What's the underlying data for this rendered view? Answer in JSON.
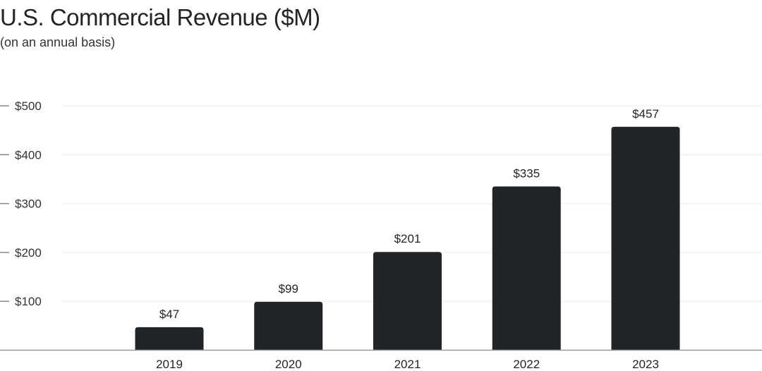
{
  "chart_data": {
    "type": "bar",
    "title": "U.S. Commercial Revenue ($M)",
    "subtitle": "(on an annual basis)",
    "categories": [
      "2019",
      "2020",
      "2021",
      "2022",
      "2023"
    ],
    "values": [
      47,
      99,
      201,
      335,
      457
    ],
    "data_labels": [
      "$47",
      "$99",
      "$201",
      "$335",
      "$457"
    ],
    "yticks": [
      100,
      200,
      300,
      400,
      500
    ],
    "ytick_labels": [
      "$100",
      "$200",
      "$300",
      "$400",
      "$500"
    ],
    "ylim": [
      0,
      500
    ],
    "xlabel": "",
    "ylabel": "",
    "grid": true,
    "bar_color": "#222426",
    "grid_color": "#eeeeee"
  }
}
